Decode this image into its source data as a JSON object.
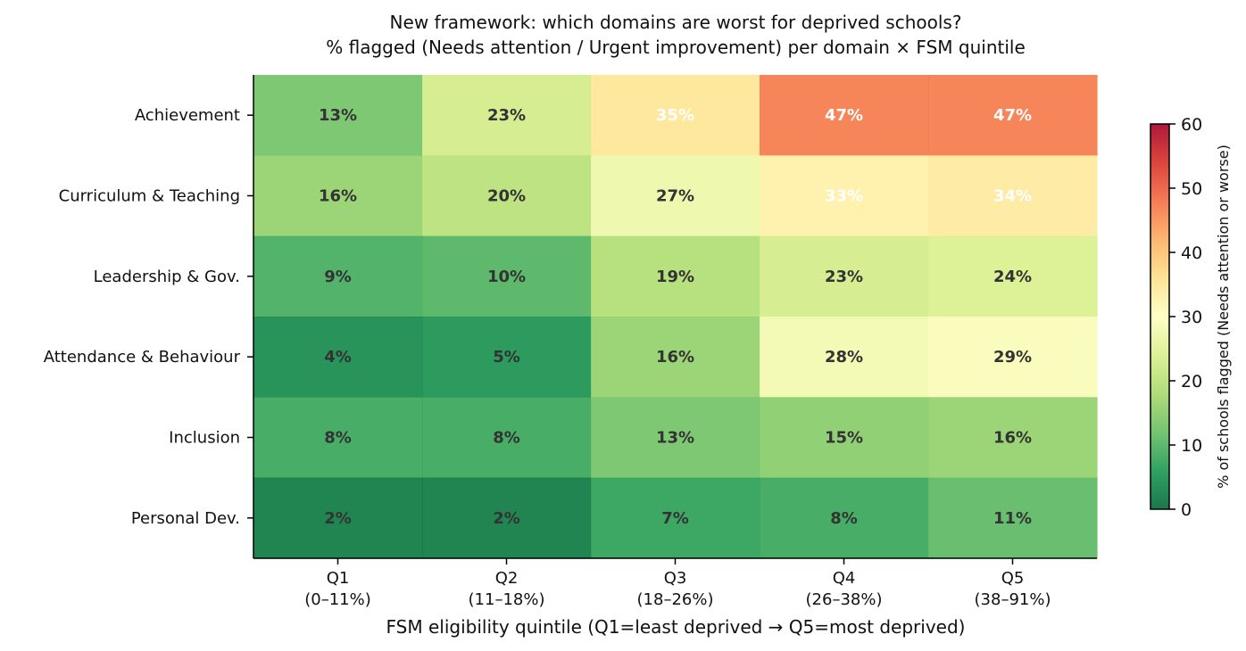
{
  "chart_data": {
    "type": "heatmap",
    "title": "New framework: which domains are worst for deprived schools?",
    "subtitle": "% flagged (Needs attention / Urgent improvement) per domain × FSM quintile",
    "xlabel": "FSM eligibility quintile (Q1=least deprived → Q5=most deprived)",
    "ylabel": "",
    "x_categories": [
      {
        "name": "Q1",
        "range": "(0–11%)"
      },
      {
        "name": "Q2",
        "range": "(11–18%)"
      },
      {
        "name": "Q3",
        "range": "(18–26%)"
      },
      {
        "name": "Q4",
        "range": "(26–38%)"
      },
      {
        "name": "Q5",
        "range": "(38–91%)"
      }
    ],
    "y_categories": [
      "Achievement",
      "Curriculum & Teaching",
      "Leadership & Gov.",
      "Attendance & Behaviour",
      "Inclusion",
      "Personal Dev."
    ],
    "values": [
      [
        13,
        23,
        35,
        47,
        47
      ],
      [
        16,
        20,
        27,
        33,
        34
      ],
      [
        9,
        10,
        19,
        23,
        24
      ],
      [
        4,
        5,
        16,
        28,
        29
      ],
      [
        8,
        8,
        13,
        15,
        16
      ],
      [
        2,
        2,
        7,
        8,
        11
      ]
    ],
    "value_suffix": "%",
    "light_label_threshold": 30,
    "colorbar": {
      "label": "% of schools flagged (Needs attention or worse)",
      "range": [
        0,
        60
      ],
      "ticks": [
        0,
        10,
        20,
        30,
        40,
        50,
        60
      ],
      "colormap": "RdYlGn_r",
      "stops": [
        "#006837",
        "#1a9850",
        "#66bd63",
        "#a6d96a",
        "#d9ef8b",
        "#ffffbf",
        "#fee08b",
        "#fdae61",
        "#f46d43",
        "#d73027",
        "#a50026"
      ]
    },
    "label_colors": {
      "dark": "#333333",
      "light": "#ffffff"
    },
    "grid": false
  }
}
